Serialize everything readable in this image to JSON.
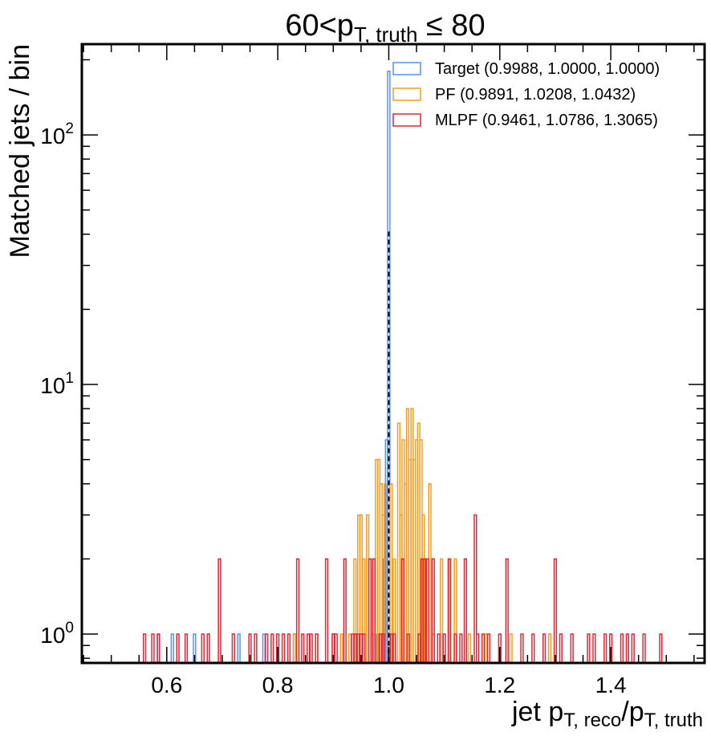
{
  "chart_data": {
    "type": "histogram-step",
    "title": {
      "prefix": "60",
      "lt": "<",
      "p": "p",
      "sub": "T, truth",
      "suffix": " ≤ 80"
    },
    "xlabel": {
      "pre": "jet p",
      "sub1": "T, reco",
      "mid": "/p",
      "sub2": "T, truth"
    },
    "ylabel": "Matched jets / bin",
    "xlim": [
      0.447,
      1.569
    ],
    "ylim": [
      0.766,
      231
    ],
    "yscale": "log",
    "bin_width": 0.004,
    "xticks": [
      0.6,
      0.8,
      1.0,
      1.2,
      1.4
    ],
    "xtick_labels": [
      "0.6",
      "0.8",
      "1.0",
      "1.2",
      "1.4"
    ],
    "yticks": [
      1,
      10,
      100
    ],
    "ytick_labels": [
      {
        "base": "10",
        "exp": "0"
      },
      {
        "base": "10",
        "exp": "1"
      },
      {
        "base": "10",
        "exp": "2"
      }
    ],
    "reference_line": {
      "x": 1.0,
      "height": 41,
      "style": "dashed",
      "color": "#000000"
    },
    "legend_position": "top-right",
    "series": [
      {
        "name": "Target (0.9988, 1.0000, 1.0000)",
        "color": "#5790fc",
        "bins": [
          [
            0.585,
            1
          ],
          [
            0.61,
            1
          ],
          [
            0.65,
            1
          ],
          [
            0.73,
            1
          ],
          [
            0.775,
            1
          ],
          [
            0.83,
            1
          ],
          [
            0.98,
            1
          ],
          [
            0.992,
            2
          ],
          [
            0.996,
            6
          ],
          [
            1.0,
            180
          ]
        ]
      },
      {
        "name": "PF (0.9891, 1.0208, 1.0432)",
        "color": "#f89c20",
        "bins": [
          [
            0.83,
            1
          ],
          [
            0.87,
            1
          ],
          [
            0.9,
            1
          ],
          [
            0.915,
            1
          ],
          [
            0.93,
            1
          ],
          [
            0.939,
            2
          ],
          [
            0.946,
            3
          ],
          [
            0.95,
            3
          ],
          [
            0.955,
            2
          ],
          [
            0.962,
            3
          ],
          [
            0.97,
            1
          ],
          [
            0.978,
            5
          ],
          [
            0.982,
            5
          ],
          [
            0.986,
            4
          ],
          [
            0.99,
            3
          ],
          [
            0.994,
            4
          ],
          [
            1.004,
            4
          ],
          [
            1.01,
            2
          ],
          [
            1.018,
            7
          ],
          [
            1.022,
            3
          ],
          [
            1.026,
            6
          ],
          [
            1.03,
            4
          ],
          [
            1.034,
            8
          ],
          [
            1.038,
            5
          ],
          [
            1.042,
            8
          ],
          [
            1.046,
            5
          ],
          [
            1.05,
            6
          ],
          [
            1.054,
            7
          ],
          [
            1.058,
            6
          ],
          [
            1.062,
            3
          ],
          [
            1.066,
            2
          ],
          [
            1.074,
            4
          ],
          [
            1.08,
            1
          ],
          [
            1.095,
            2
          ],
          [
            1.11,
            2
          ],
          [
            1.12,
            2
          ],
          [
            1.145,
            1
          ],
          [
            1.175,
            1
          ],
          [
            1.22,
            1
          ],
          [
            1.29,
            1
          ]
        ]
      },
      {
        "name": "MLPF (0.9461, 1.0786, 1.3065)",
        "color": "#e42536",
        "bins": [
          [
            0.56,
            1
          ],
          [
            0.575,
            1
          ],
          [
            0.585,
            1
          ],
          [
            0.62,
            1
          ],
          [
            0.635,
            1
          ],
          [
            0.665,
            1
          ],
          [
            0.675,
            1
          ],
          [
            0.695,
            2
          ],
          [
            0.72,
            1
          ],
          [
            0.75,
            1
          ],
          [
            0.76,
            1
          ],
          [
            0.78,
            1
          ],
          [
            0.79,
            1
          ],
          [
            0.8,
            1
          ],
          [
            0.81,
            1
          ],
          [
            0.82,
            1
          ],
          [
            0.836,
            2
          ],
          [
            0.845,
            1
          ],
          [
            0.855,
            1
          ],
          [
            0.86,
            1
          ],
          [
            0.87,
            1
          ],
          [
            0.888,
            2
          ],
          [
            0.9,
            1
          ],
          [
            0.905,
            1
          ],
          [
            0.921,
            2
          ],
          [
            0.935,
            1
          ],
          [
            0.94,
            1
          ],
          [
            0.945,
            1
          ],
          [
            0.95,
            1
          ],
          [
            0.955,
            1
          ],
          [
            0.966,
            2
          ],
          [
            0.973,
            2
          ],
          [
            0.985,
            1
          ],
          [
            0.99,
            1
          ],
          [
            1.005,
            1
          ],
          [
            1.01,
            1
          ],
          [
            1.025,
            2
          ],
          [
            1.035,
            1
          ],
          [
            1.055,
            1
          ],
          [
            1.06,
            2
          ],
          [
            1.064,
            2
          ],
          [
            1.07,
            2
          ],
          [
            1.08,
            2
          ],
          [
            1.09,
            1
          ],
          [
            1.1,
            1
          ],
          [
            1.109,
            2
          ],
          [
            1.12,
            1
          ],
          [
            1.13,
            1
          ],
          [
            1.138,
            2
          ],
          [
            1.156,
            3
          ],
          [
            1.16,
            1
          ],
          [
            1.17,
            1
          ],
          [
            1.18,
            1
          ],
          [
            1.2,
            1
          ],
          [
            1.213,
            2
          ],
          [
            1.24,
            1
          ],
          [
            1.26,
            1
          ],
          [
            1.28,
            1
          ],
          [
            1.3,
            2
          ],
          [
            1.31,
            1
          ],
          [
            1.33,
            1
          ],
          [
            1.36,
            1
          ],
          [
            1.37,
            1
          ],
          [
            1.39,
            1
          ],
          [
            1.4,
            1
          ],
          [
            1.42,
            1
          ],
          [
            1.43,
            1
          ],
          [
            1.44,
            1
          ],
          [
            1.46,
            1
          ],
          [
            1.49,
            1
          ]
        ]
      }
    ]
  }
}
